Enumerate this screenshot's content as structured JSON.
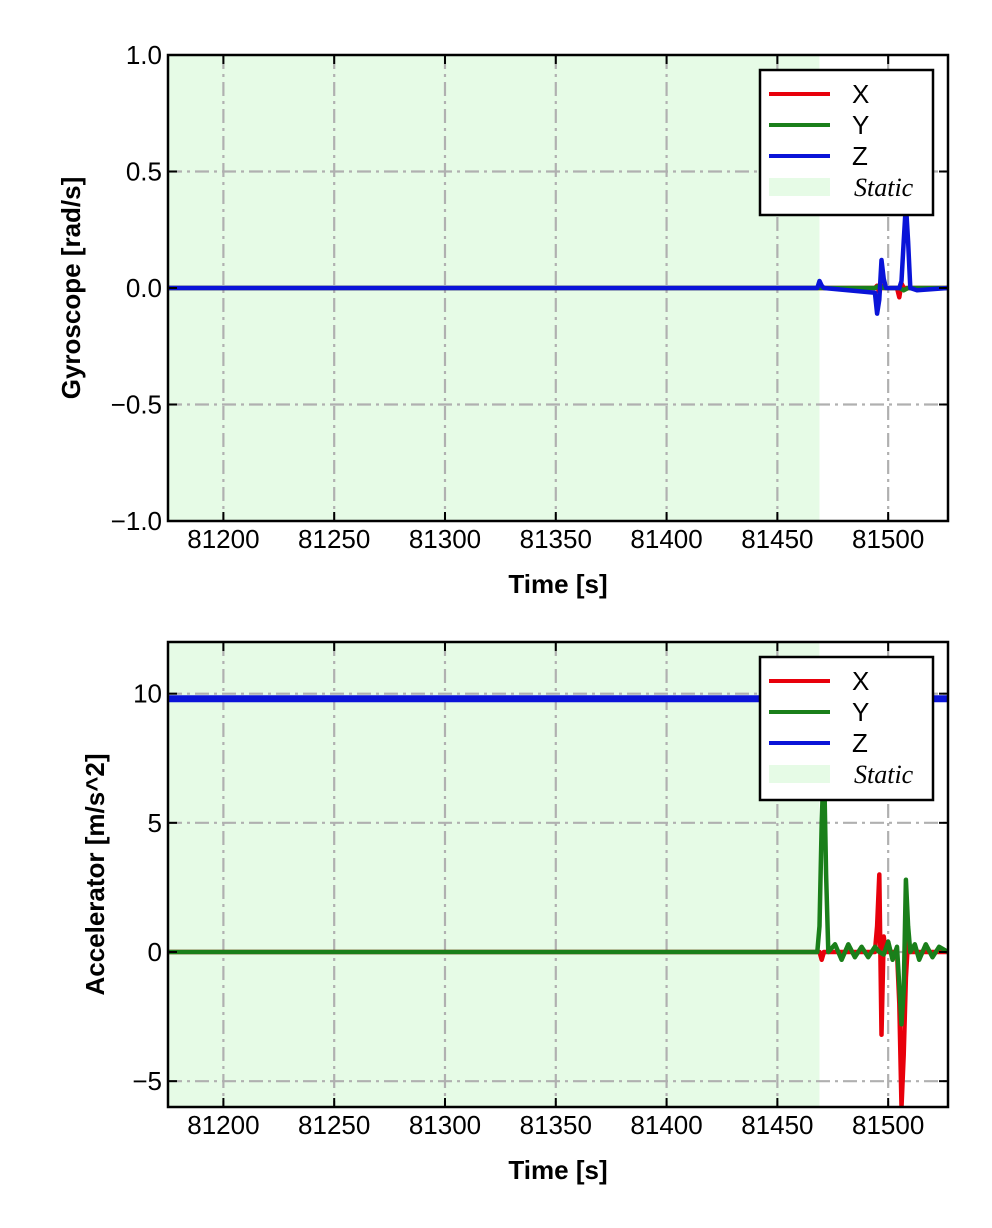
{
  "chart_data": [
    {
      "type": "line",
      "xlabel": "Time [s]",
      "ylabel": "Gyroscope [rad/s]",
      "xlim": [
        81175,
        81527
      ],
      "ylim": [
        -1.0,
        1.0
      ],
      "xticks": [
        81200,
        81250,
        81300,
        81350,
        81400,
        81450,
        81500
      ],
      "yticks": [
        1.0,
        0.5,
        0.0,
        -0.5,
        -1.0
      ],
      "ytick_labels": [
        "1.0",
        "0.5",
        "0.0",
        "−0.5",
        "−1.0"
      ],
      "xtick_labels": [
        "81200",
        "81250",
        "81300",
        "81350",
        "81400",
        "81450",
        "81500"
      ],
      "grid": true,
      "legend_position": "top-right",
      "static_region": {
        "label": "Static",
        "x_start": 81175,
        "x_end": 81469,
        "color": "#e6fbe6"
      },
      "series": [
        {
          "name": "X",
          "color": "#e8000b",
          "x": [
            81175,
            81469,
            81494,
            81495,
            81496,
            81497,
            81498,
            81504,
            81505,
            81506,
            81507,
            81508,
            81510,
            81527
          ],
          "y": [
            0.0,
            0.0,
            0.0,
            0.01,
            -0.02,
            0.01,
            0.0,
            0.0,
            -0.04,
            0.02,
            0.0,
            0.0,
            0.0,
            0.0
          ]
        },
        {
          "name": "Y",
          "color": "#1a7f1a",
          "x": [
            81175,
            81469,
            81494,
            81496,
            81498,
            81505,
            81507,
            81509,
            81527
          ],
          "y": [
            0.0,
            0.0,
            0.0,
            0.01,
            0.0,
            0.0,
            -0.01,
            0.0,
            0.0
          ]
        },
        {
          "name": "Z",
          "color": "#0a14d8",
          "x": [
            81175,
            81468,
            81469,
            81470,
            81471,
            81494,
            81495,
            81496,
            81497,
            81498,
            81499,
            81505,
            81506,
            81507,
            81508,
            81509,
            81510,
            81513,
            81527
          ],
          "y": [
            0.0,
            0.0,
            0.03,
            0.01,
            0.0,
            -0.02,
            -0.11,
            -0.05,
            0.12,
            0.04,
            0.0,
            0.0,
            0.03,
            0.2,
            0.36,
            0.2,
            0.0,
            -0.01,
            0.0
          ]
        }
      ]
    },
    {
      "type": "line",
      "xlabel": "Time [s]",
      "ylabel": "Accelerator [m/s^2]",
      "xlim": [
        81175,
        81527
      ],
      "ylim": [
        -6.0,
        12.0
      ],
      "xticks": [
        81200,
        81250,
        81300,
        81350,
        81400,
        81450,
        81500
      ],
      "yticks": [
        10,
        5,
        0,
        -5
      ],
      "ytick_labels": [
        "10",
        "5",
        "0",
        "−5"
      ],
      "xtick_labels": [
        "81200",
        "81250",
        "81300",
        "81350",
        "81400",
        "81450",
        "81500"
      ],
      "grid": true,
      "legend_position": "top-right",
      "static_region": {
        "label": "Static",
        "x_start": 81175,
        "x_end": 81469,
        "color": "#e6fbe6"
      },
      "series": [
        {
          "name": "X",
          "color": "#e8000b",
          "x": [
            81175,
            81469,
            81470,
            81471,
            81494,
            81495,
            81496,
            81497,
            81498,
            81499,
            81504,
            81505,
            81506,
            81507,
            81508,
            81509,
            81510,
            81527
          ],
          "y": [
            0.0,
            0.0,
            -0.3,
            0.0,
            0.0,
            1.0,
            3.0,
            -3.2,
            0.6,
            0.0,
            0.0,
            -2.0,
            -6.0,
            -4.0,
            -1.0,
            0.5,
            0.0,
            0.0
          ]
        },
        {
          "name": "Y",
          "color": "#1a7f1a",
          "x": [
            81175,
            81468,
            81469,
            81470,
            81471,
            81472,
            81473,
            81476,
            81479,
            81482,
            81485,
            81488,
            81491,
            81494,
            81496,
            81498,
            81500,
            81502,
            81504,
            81506,
            81507,
            81508,
            81509,
            81510,
            81512,
            81514,
            81517,
            81520,
            81523,
            81527
          ],
          "y": [
            0.0,
            0.0,
            1.0,
            5.0,
            7.5,
            3.0,
            0.0,
            0.3,
            -0.3,
            0.3,
            -0.2,
            0.2,
            -0.2,
            0.2,
            0.0,
            -0.1,
            0.4,
            -0.3,
            0.2,
            -2.8,
            -1.5,
            2.8,
            1.0,
            0.0,
            0.3,
            -0.3,
            0.3,
            -0.2,
            0.2,
            0.0
          ]
        },
        {
          "name": "Z",
          "color": "#0a14d8",
          "x": [
            81175,
            81469,
            81496,
            81506,
            81509,
            81527
          ],
          "y": [
            9.8,
            9.8,
            9.8,
            9.8,
            9.8,
            9.8
          ]
        }
      ]
    }
  ]
}
